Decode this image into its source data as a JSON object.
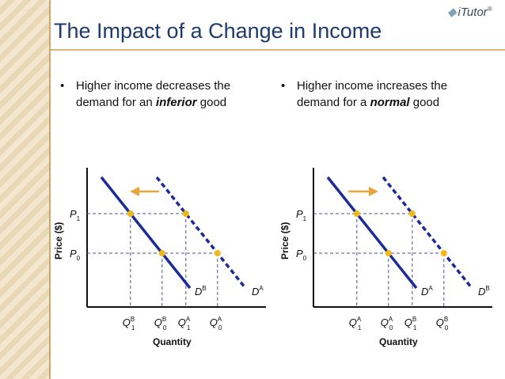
{
  "slide": {
    "title": "The Impact of a Change in Income",
    "logo": "iTutor",
    "logo_mark": "◆",
    "logo_reg": "®"
  },
  "bullets": {
    "marker": "•",
    "left": {
      "pre": "Higher income decreases the demand for an ",
      "em": "inferior",
      "post": " good"
    },
    "right": {
      "pre": "Higher income increases the demand for a ",
      "em": "normal",
      "post": " good"
    }
  },
  "colors": {
    "title": "#1f3a6e",
    "curve": "#1c2a9a",
    "point": "#f2b818",
    "arrow": "#e9a43a",
    "guide": "#4a4f9a"
  },
  "diagrams": [
    {
      "id": "left",
      "y_axis_label": "Price ($)",
      "x_axis_label": "Quantity",
      "price_labels": [
        {
          "main": "P",
          "sub": "1"
        },
        {
          "main": "P",
          "sub": "0"
        }
      ],
      "solid_curve": {
        "main": "D",
        "sup": "B"
      },
      "dashed_curve": {
        "main": "D",
        "sup": "A"
      },
      "quantity_labels": [
        {
          "main": "Q",
          "sup": "B",
          "sub": "1"
        },
        {
          "main": "Q",
          "sup": "B",
          "sub": "0"
        },
        {
          "main": "Q",
          "sup": "A",
          "sub": "1"
        },
        {
          "main": "Q",
          "sup": "A",
          "sub": "0"
        }
      ],
      "shift": "left"
    },
    {
      "id": "right",
      "y_axis_label": "Price ($)",
      "x_axis_label": "Quantity",
      "price_labels": [
        {
          "main": "P",
          "sub": "1"
        },
        {
          "main": "P",
          "sub": "0"
        }
      ],
      "solid_curve": {
        "main": "D",
        "sup": "A"
      },
      "dashed_curve": {
        "main": "D",
        "sup": "B"
      },
      "quantity_labels": [
        {
          "main": "Q",
          "sup": "A",
          "sub": "1"
        },
        {
          "main": "Q",
          "sup": "A",
          "sub": "0"
        },
        {
          "main": "Q",
          "sup": "B",
          "sub": "1"
        },
        {
          "main": "Q",
          "sup": "B",
          "sub": "0"
        }
      ],
      "shift": "right"
    }
  ]
}
